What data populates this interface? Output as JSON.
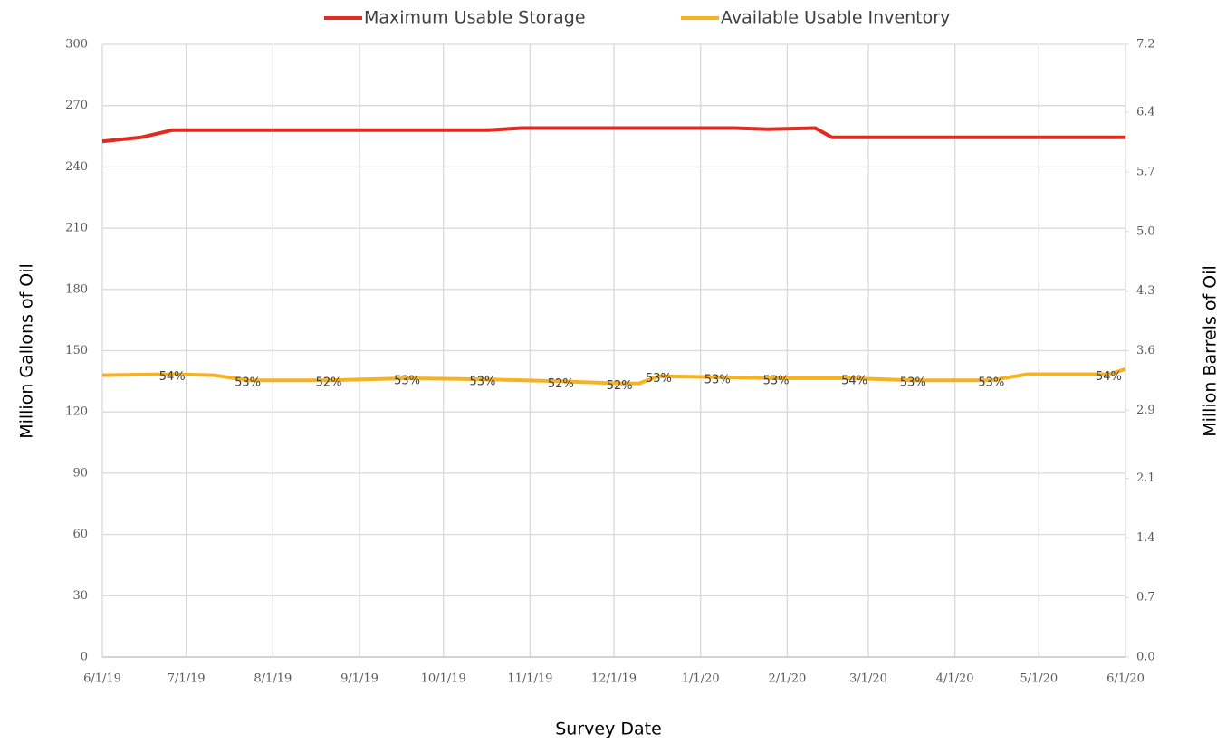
{
  "chart_data": {
    "type": "line",
    "x_label": "Survey Date",
    "y_label": "Million Gallons of Oil",
    "y2_label": "Million Barrels of Oil",
    "legend": "top",
    "grid": true,
    "xlim": [
      "6/1/19",
      "6/1/20"
    ],
    "xticks": [
      "6/1/19",
      "7/1/19",
      "8/1/19",
      "9/1/19",
      "10/1/19",
      "11/1/19",
      "12/1/19",
      "1/1/20",
      "2/1/20",
      "3/1/20",
      "4/1/20",
      "5/1/20",
      "6/1/20"
    ],
    "ylim": [
      0,
      300
    ],
    "yticks": [
      0,
      30,
      60,
      90,
      120,
      150,
      180,
      210,
      240,
      270,
      300
    ],
    "y2lim": [
      0,
      7.2
    ],
    "y2ticks": [
      {
        "value": 0,
        "label": "0.0"
      },
      0.7,
      1.4,
      2.1,
      2.9,
      3.6,
      4.3,
      {
        "value": 5,
        "label": "5.0"
      },
      5.7,
      6.4,
      7.2
    ],
    "series": [
      {
        "name": "Maximum Usable Storage",
        "color": "#e02b20",
        "x": [
          "6/1/19",
          "6/15/19",
          "6/26/19",
          "10/17/19",
          "10/29/19",
          "1/13/20",
          "1/25/20",
          "2/11/20",
          "2/17/20",
          "6/1/20"
        ],
        "values": [
          252.5,
          254.5,
          258,
          258,
          259,
          259,
          258.5,
          259,
          254.5,
          254.5
        ]
      },
      {
        "name": "Available Usable Inventory",
        "color": "#f5b324",
        "x": [
          "6/1/19",
          "6/26/19",
          "7/11/19",
          "7/23/19",
          "8/21/19",
          "9/18/19",
          "10/15/19",
          "11/12/19",
          "12/3/19",
          "12/10/19",
          "12/17/19",
          "1/7/20",
          "1/28/20",
          "2/25/20",
          "3/17/20",
          "4/14/20",
          "4/27/20",
          "5/26/20",
          "6/1/20"
        ],
        "values": [
          138,
          138.5,
          138,
          135.5,
          135.5,
          136.5,
          136,
          135,
          134,
          134,
          137.5,
          137,
          136.5,
          136.5,
          135.5,
          135.5,
          138.5,
          138.5,
          141
        ],
        "value_labels": [
          null,
          "54%",
          null,
          "53%",
          "52%",
          "53%",
          "53%",
          "52%",
          "52%",
          null,
          "53%",
          "53%",
          "53%",
          "54%",
          "53%",
          "53%",
          null,
          "54%",
          null
        ]
      }
    ]
  }
}
